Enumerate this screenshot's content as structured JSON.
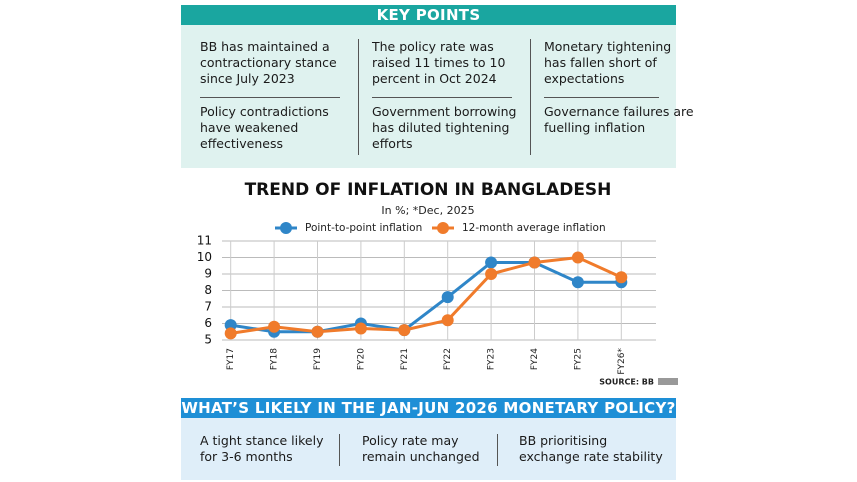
{
  "key_points": {
    "title": "KEY POINTS",
    "items": [
      "BB has maintained a contractionary stance since July 2023",
      "The policy rate was raised 11 times to 10 percent in Oct 2024",
      "Monetary tightening has fallen short of expectations",
      "Policy contradictions have weakened effectiveness",
      "Government borrowing has diluted tightening efforts",
      "Governance failures are fuelling inflation"
    ]
  },
  "chart_data": {
    "type": "line",
    "title": "TREND OF INFLATION IN BANGLADESH",
    "subtitle": "In %; *Dec, 2025",
    "categories": [
      "FY17",
      "FY18",
      "FY19",
      "FY20",
      "FY21",
      "FY22",
      "FY23",
      "FY24",
      "FY25",
      "FY26*"
    ],
    "series": [
      {
        "name": "Point-to-point inflation",
        "color": "#2f86c8",
        "values": [
          5.9,
          5.5,
          5.5,
          6.0,
          5.6,
          7.6,
          9.7,
          9.7,
          8.5,
          8.5
        ]
      },
      {
        "name": "12-month average inflation",
        "color": "#f07b2b",
        "values": [
          5.4,
          5.8,
          5.5,
          5.7,
          5.6,
          6.2,
          9.0,
          9.7,
          10.0,
          8.8
        ]
      }
    ],
    "ylim": [
      5,
      11
    ],
    "yticks": [
      5,
      6,
      7,
      8,
      9,
      10,
      11
    ],
    "grid": true,
    "source": "SOURCE: BB"
  },
  "outlook": {
    "title": "WHAT’S LIKELY IN THE JAN-JUN 2026 MONETARY POLICY?",
    "items": [
      "A tight stance likely for 3-6 months",
      "Policy rate may remain unchanged",
      "BB prioritising exchange rate stability"
    ]
  }
}
